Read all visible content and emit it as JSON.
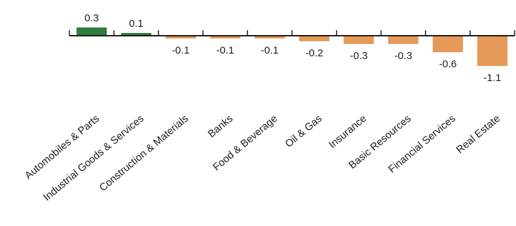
{
  "chart_data": {
    "type": "bar",
    "categories": [
      "Automobiles & Parts",
      "Industrial Goods & Services",
      "Construction & Materials",
      "Banks",
      "Food & Beverage",
      "Oil & Gas",
      "Insurance",
      "Basic Resources",
      "Financial Services",
      "Real Estate"
    ],
    "values": [
      0.3,
      0.1,
      -0.1,
      -0.1,
      -0.1,
      -0.2,
      -0.3,
      -0.3,
      -0.6,
      -1.1
    ],
    "value_labels": [
      "0.3",
      "0.1",
      "-0.1",
      "-0.1",
      "-0.1",
      "-0.2",
      "-0.3",
      "-0.3",
      "-0.6",
      "-1.1"
    ],
    "title": "",
    "xlabel": "",
    "ylabel": "",
    "ylim": [
      -1.1,
      0.3
    ],
    "grid": false,
    "colors": {
      "positive": "#2e7d3e",
      "negative": "#e59a5a",
      "axis": "#1a1a1a"
    }
  }
}
